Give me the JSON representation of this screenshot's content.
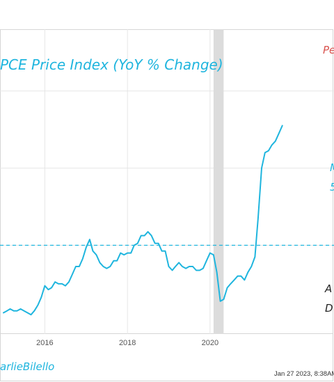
{
  "chart_data": {
    "type": "line",
    "title": "PCE Price Index (YoY % Change)",
    "annotations": {
      "top_right": "Pe",
      "mid_right_1": "M",
      "mid_right_2": "5",
      "lower_right_1": "A",
      "lower_right_2": "D"
    },
    "x_ticks": [
      "2016",
      "2018",
      "2020"
    ],
    "xlim": [
      "2014-12-01",
      "2023-01-01"
    ],
    "ylim": [
      -0.3,
      7.6
    ],
    "reference_line": {
      "value": 2.0,
      "style": "dashed"
    },
    "recession_shading": {
      "start": "2020-02-01",
      "end": "2020-04-30"
    },
    "series": [
      {
        "points": [
          [
            "2015-01-01",
            0.25
          ],
          [
            "2015-02-01",
            0.3
          ],
          [
            "2015-03-01",
            0.35
          ],
          [
            "2015-04-01",
            0.3
          ],
          [
            "2015-05-01",
            0.3
          ],
          [
            "2015-06-01",
            0.35
          ],
          [
            "2015-07-01",
            0.3
          ],
          [
            "2015-08-01",
            0.25
          ],
          [
            "2015-09-01",
            0.2
          ],
          [
            "2015-10-01",
            0.3
          ],
          [
            "2015-11-01",
            0.45
          ],
          [
            "2015-12-01",
            0.65
          ],
          [
            "2016-01-01",
            0.95
          ],
          [
            "2016-02-01",
            0.85
          ],
          [
            "2016-03-01",
            0.9
          ],
          [
            "2016-04-01",
            1.05
          ],
          [
            "2016-05-01",
            1.0
          ],
          [
            "2016-06-01",
            1.0
          ],
          [
            "2016-07-01",
            0.95
          ],
          [
            "2016-08-01",
            1.05
          ],
          [
            "2016-09-01",
            1.25
          ],
          [
            "2016-10-01",
            1.45
          ],
          [
            "2016-11-01",
            1.45
          ],
          [
            "2016-12-01",
            1.65
          ],
          [
            "2017-01-01",
            1.95
          ],
          [
            "2017-02-01",
            2.15
          ],
          [
            "2017-03-01",
            1.85
          ],
          [
            "2017-04-01",
            1.75
          ],
          [
            "2017-05-01",
            1.55
          ],
          [
            "2017-06-01",
            1.45
          ],
          [
            "2017-07-01",
            1.4
          ],
          [
            "2017-08-01",
            1.45
          ],
          [
            "2017-09-01",
            1.6
          ],
          [
            "2017-10-01",
            1.6
          ],
          [
            "2017-11-01",
            1.8
          ],
          [
            "2017-12-01",
            1.75
          ],
          [
            "2018-01-01",
            1.8
          ],
          [
            "2018-02-01",
            1.8
          ],
          [
            "2018-03-01",
            2.0
          ],
          [
            "2018-04-01",
            2.05
          ],
          [
            "2018-05-01",
            2.25
          ],
          [
            "2018-06-01",
            2.25
          ],
          [
            "2018-07-01",
            2.35
          ],
          [
            "2018-08-01",
            2.25
          ],
          [
            "2018-09-01",
            2.05
          ],
          [
            "2018-10-01",
            2.05
          ],
          [
            "2018-11-01",
            1.85
          ],
          [
            "2018-12-01",
            1.85
          ],
          [
            "2019-01-01",
            1.45
          ],
          [
            "2019-02-01",
            1.35
          ],
          [
            "2019-03-01",
            1.45
          ],
          [
            "2019-04-01",
            1.55
          ],
          [
            "2019-05-01",
            1.45
          ],
          [
            "2019-06-01",
            1.4
          ],
          [
            "2019-07-01",
            1.45
          ],
          [
            "2019-08-01",
            1.45
          ],
          [
            "2019-09-01",
            1.35
          ],
          [
            "2019-10-01",
            1.35
          ],
          [
            "2019-11-01",
            1.4
          ],
          [
            "2019-12-01",
            1.6
          ],
          [
            "2020-01-01",
            1.8
          ],
          [
            "2020-02-01",
            1.75
          ],
          [
            "2020-03-01",
            1.3
          ],
          [
            "2020-04-01",
            0.55
          ],
          [
            "2020-05-01",
            0.6
          ],
          [
            "2020-06-01",
            0.9
          ],
          [
            "2020-07-01",
            1.0
          ],
          [
            "2020-08-01",
            1.1
          ],
          [
            "2020-09-01",
            1.2
          ],
          [
            "2020-10-01",
            1.2
          ],
          [
            "2020-11-01",
            1.1
          ],
          [
            "2020-12-01",
            1.3
          ],
          [
            "2021-01-01",
            1.45
          ],
          [
            "2021-02-01",
            1.7
          ],
          [
            "2021-03-01",
            2.7
          ],
          [
            "2021-04-01",
            4.0
          ],
          [
            "2021-05-01",
            4.4
          ],
          [
            "2021-06-01",
            4.45
          ],
          [
            "2021-07-01",
            4.6
          ],
          [
            "2021-08-01",
            4.7
          ],
          [
            "2021-09-01",
            4.9
          ],
          [
            "2021-10-01",
            5.1
          ]
        ]
      }
    ],
    "line_color": "#1fb5de",
    "reference_color": "#1fb5de",
    "shading_color": "#dcdcdc",
    "annotation_red": "#d9534f"
  },
  "footer": {
    "handle": "arlieBilello",
    "timestamp": "Jan 27 2023, 8:38AM"
  }
}
